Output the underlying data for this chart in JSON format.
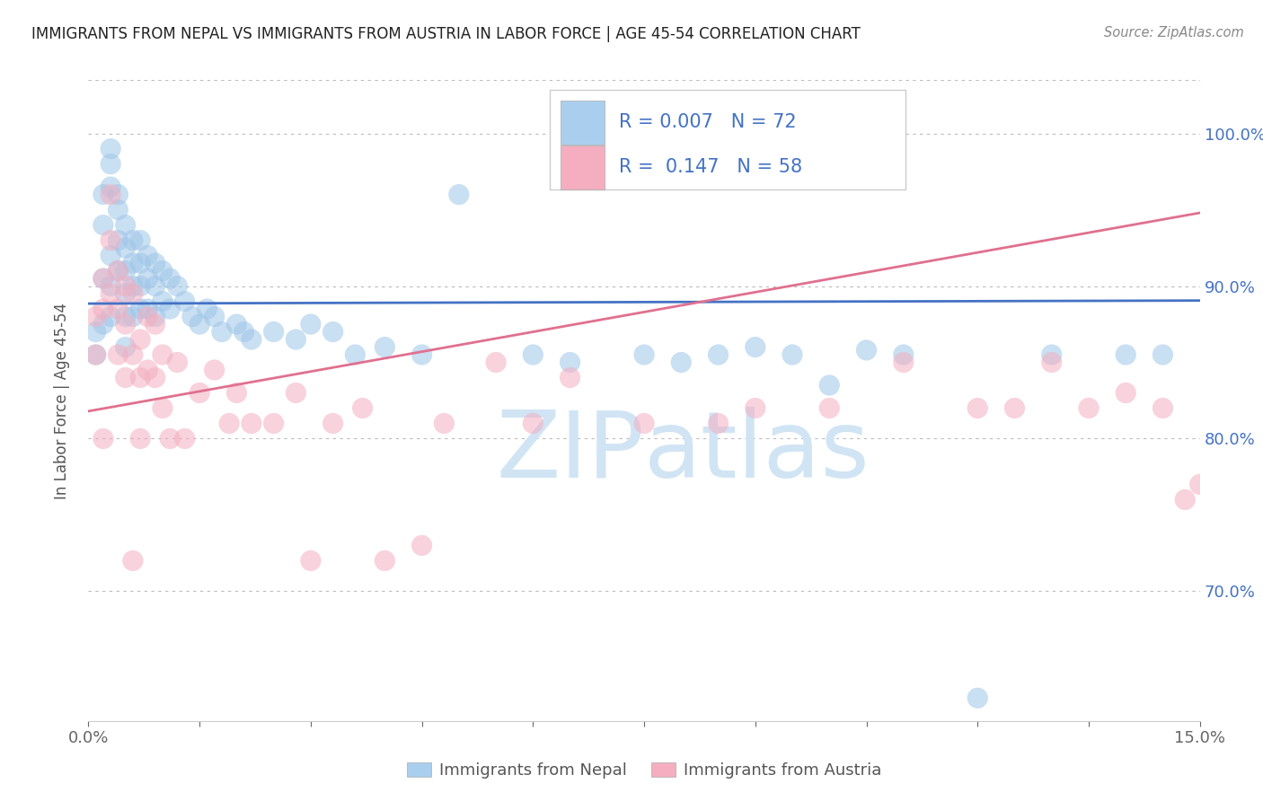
{
  "title": "IMMIGRANTS FROM NEPAL VS IMMIGRANTS FROM AUSTRIA IN LABOR FORCE | AGE 45-54 CORRELATION CHART",
  "source": "Source: ZipAtlas.com",
  "ylabel": "In Labor Force | Age 45-54",
  "xlim": [
    0.0,
    0.15
  ],
  "ylim": [
    0.615,
    1.035
  ],
  "yticks": [
    0.7,
    0.8,
    0.9,
    1.0
  ],
  "ytick_labels": [
    "70.0%",
    "80.0%",
    "90.0%",
    "100.0%"
  ],
  "nepal_R": 0.007,
  "nepal_N": 72,
  "austria_R": 0.147,
  "austria_N": 58,
  "nepal_dot_color": "#9ec5e8",
  "austria_dot_color": "#f4aec0",
  "nepal_line_color": "#4472c4",
  "austria_line_color": "#e07090",
  "legend_box_nepal_color": "#aacfee",
  "legend_box_austria_color": "#f4aec0",
  "watermark_color": "#d0e4f4",
  "nepal_label": "Immigrants from Nepal",
  "austria_label": "Immigrants from Austria",
  "nepal_x": [
    0.001,
    0.001,
    0.002,
    0.002,
    0.002,
    0.002,
    0.003,
    0.003,
    0.003,
    0.003,
    0.003,
    0.003,
    0.004,
    0.004,
    0.004,
    0.004,
    0.005,
    0.005,
    0.005,
    0.005,
    0.005,
    0.005,
    0.006,
    0.006,
    0.006,
    0.006,
    0.007,
    0.007,
    0.007,
    0.007,
    0.008,
    0.008,
    0.008,
    0.009,
    0.009,
    0.009,
    0.01,
    0.01,
    0.011,
    0.011,
    0.012,
    0.013,
    0.014,
    0.015,
    0.016,
    0.017,
    0.018,
    0.02,
    0.021,
    0.022,
    0.025,
    0.028,
    0.03,
    0.033,
    0.036,
    0.04,
    0.045,
    0.05,
    0.06,
    0.065,
    0.075,
    0.08,
    0.085,
    0.09,
    0.095,
    0.1,
    0.105,
    0.11,
    0.12,
    0.13,
    0.14,
    0.145
  ],
  "nepal_y": [
    0.87,
    0.855,
    0.96,
    0.94,
    0.905,
    0.875,
    0.99,
    0.98,
    0.965,
    0.92,
    0.9,
    0.88,
    0.96,
    0.95,
    0.93,
    0.91,
    0.94,
    0.925,
    0.91,
    0.895,
    0.88,
    0.86,
    0.93,
    0.915,
    0.9,
    0.88,
    0.93,
    0.915,
    0.9,
    0.885,
    0.92,
    0.905,
    0.885,
    0.915,
    0.9,
    0.88,
    0.91,
    0.89,
    0.905,
    0.885,
    0.9,
    0.89,
    0.88,
    0.875,
    0.885,
    0.88,
    0.87,
    0.875,
    0.87,
    0.865,
    0.87,
    0.865,
    0.875,
    0.87,
    0.855,
    0.86,
    0.855,
    0.96,
    0.855,
    0.85,
    0.855,
    0.85,
    0.855,
    0.86,
    0.855,
    0.835,
    0.858,
    0.855,
    0.63,
    0.855,
    0.855,
    0.855
  ],
  "austria_x": [
    0.001,
    0.001,
    0.002,
    0.002,
    0.002,
    0.003,
    0.003,
    0.003,
    0.004,
    0.004,
    0.004,
    0.005,
    0.005,
    0.005,
    0.006,
    0.006,
    0.006,
    0.007,
    0.007,
    0.007,
    0.008,
    0.008,
    0.009,
    0.009,
    0.01,
    0.01,
    0.011,
    0.012,
    0.013,
    0.015,
    0.017,
    0.019,
    0.02,
    0.022,
    0.025,
    0.028,
    0.03,
    0.033,
    0.037,
    0.04,
    0.045,
    0.048,
    0.055,
    0.06,
    0.065,
    0.075,
    0.085,
    0.09,
    0.1,
    0.11,
    0.12,
    0.125,
    0.13,
    0.135,
    0.14,
    0.145,
    0.148,
    0.15
  ],
  "austria_y": [
    0.88,
    0.855,
    0.905,
    0.885,
    0.8,
    0.96,
    0.93,
    0.895,
    0.91,
    0.885,
    0.855,
    0.9,
    0.875,
    0.84,
    0.855,
    0.895,
    0.72,
    0.865,
    0.84,
    0.8,
    0.88,
    0.845,
    0.875,
    0.84,
    0.855,
    0.82,
    0.8,
    0.85,
    0.8,
    0.83,
    0.845,
    0.81,
    0.83,
    0.81,
    0.81,
    0.83,
    0.72,
    0.81,
    0.82,
    0.72,
    0.73,
    0.81,
    0.85,
    0.81,
    0.84,
    0.81,
    0.81,
    0.82,
    0.82,
    0.85,
    0.82,
    0.82,
    0.85,
    0.82,
    0.83,
    0.82,
    0.76,
    0.77
  ]
}
